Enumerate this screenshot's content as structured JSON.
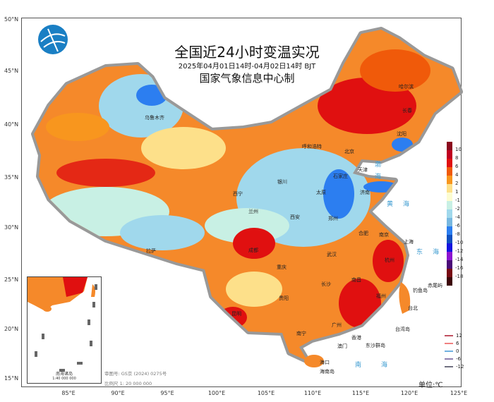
{
  "header": {
    "title": "全国近24小时变温实况",
    "time_range": "2025年04月01日14时-04月02日14时 BJT",
    "organization": "国家气象信息中心制"
  },
  "axes": {
    "lat_labels": [
      "50°N",
      "45°N",
      "40°N",
      "35°N",
      "30°N",
      "25°N",
      "20°N",
      "15°N"
    ],
    "lon_labels": [
      "85°E",
      "90°E",
      "95°E",
      "100°E",
      "105°E",
      "110°E",
      "115°E",
      "120°E",
      "125°E"
    ]
  },
  "cities": [
    "乌鲁木齐",
    "哈尔滨",
    "长春",
    "沈阳",
    "呼和浩特",
    "北京",
    "天津",
    "石家庄",
    "太原",
    "济南",
    "银川",
    "西宁",
    "兰州",
    "西安",
    "郑州",
    "合肥",
    "南京",
    "上海",
    "杭州",
    "武汉",
    "成都",
    "重庆",
    "拉萨",
    "长沙",
    "南昌",
    "福州",
    "贵阳",
    "昆明",
    "南宁",
    "广州",
    "香港",
    "澳门",
    "台北",
    "台湾岛",
    "海口",
    "海南岛",
    "东沙群岛",
    "钓鱼岛",
    "赤尾屿"
  ],
  "seas": [
    "渤海",
    "黄海",
    "东海",
    "南海"
  ],
  "colorbar": {
    "labels": [
      "10",
      "8",
      "6",
      "4",
      "2",
      "1",
      "-1",
      "-2",
      "-4",
      "-6",
      "-8",
      "-10",
      "-12",
      "-14",
      "-16",
      "-18"
    ],
    "colors": [
      "#8b0a1e",
      "#c00020",
      "#e01010",
      "#f05a0a",
      "#f8961e",
      "#fde08a",
      "#fcfcd0",
      "#c8f0e4",
      "#a0d8ec",
      "#78b8e0",
      "#2c7ef0",
      "#1050c0",
      "#1414e0",
      "#8c14d0",
      "#4a0a78",
      "#780a14",
      "#3c0508"
    ]
  },
  "contour_legend": [
    {
      "label": "12",
      "color": "#c05060"
    },
    {
      "label": "6",
      "color": "#f08080"
    },
    {
      "label": "0",
      "color": "#70b0e0"
    },
    {
      "label": "-6",
      "color": "#9080b0"
    },
    {
      "label": "-12",
      "color": "#707080"
    }
  ],
  "unit": "单位:℃",
  "inset": {
    "title": "南海诸岛",
    "scale": "1:40 000 000"
  },
  "footer": {
    "approval": "审图号: GS京 (2024) 0275号",
    "scale": "比例尺 1: 20 000 000"
  }
}
